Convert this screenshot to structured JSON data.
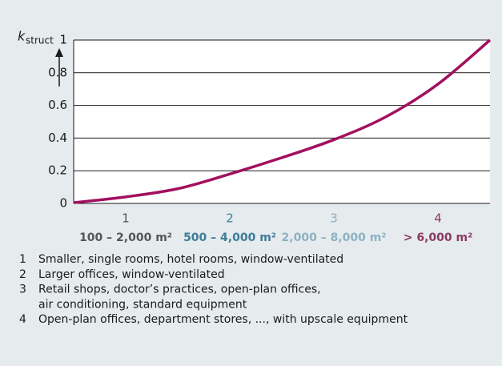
{
  "chart_data": {
    "type": "line",
    "y_label": "k",
    "y_label_sub": "struct",
    "categories": [
      "1",
      "2",
      "3",
      "4"
    ],
    "category_ranges": [
      "100 – 2,000 m²",
      "500 – 4,000 m²",
      "2,000 – 8,000 m²",
      "> 6,000 m²"
    ],
    "category_colors": [
      "#555555",
      "#3d7c99",
      "#8db2c3",
      "#8c3a64"
    ],
    "x": [
      0.5,
      1,
      1.5,
      2,
      2.5,
      3,
      3.5,
      4,
      4.5
    ],
    "series": [
      {
        "color": "#a2105f",
        "values": [
          0.005,
          0.04,
          0.09,
          0.18,
          0.28,
          0.39,
          0.53,
          0.73,
          1.0
        ]
      }
    ],
    "xlim": [
      0.5,
      4.5
    ],
    "ylim": [
      0,
      1
    ],
    "yticks": [
      0,
      0.2,
      0.4,
      0.6,
      0.8,
      1
    ],
    "grid": true
  },
  "notes": [
    {
      "number": "1",
      "lines": [
        "Smaller, single rooms, hotel rooms, window-ventilated"
      ]
    },
    {
      "number": "2",
      "lines": [
        "Larger offices, window-ventilated"
      ]
    },
    {
      "number": "3",
      "lines": [
        "Retail shops, doctor’s practices, open-plan offices,",
        "air conditioning, standard equipment"
      ]
    },
    {
      "number": "4",
      "lines": [
        "Open-plan offices, department stores, ..., with upscale equipment"
      ]
    }
  ]
}
